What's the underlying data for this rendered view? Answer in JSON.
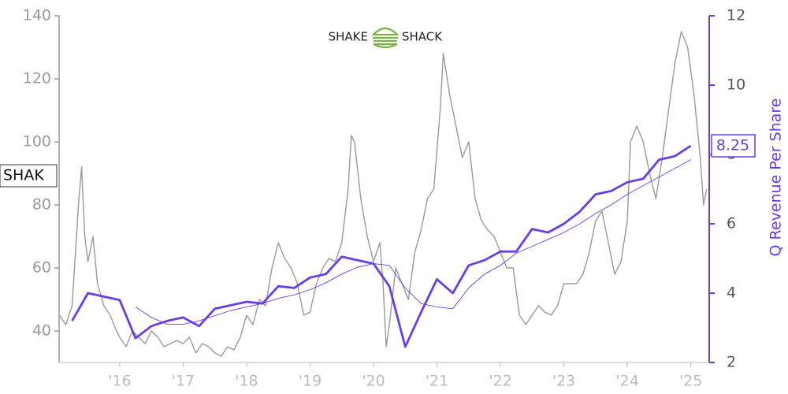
{
  "chart_data": {
    "type": "line",
    "logo": {
      "left": "SHAKE",
      "right": "SHACK"
    },
    "y2label": "Q Revenue Per Share",
    "xlim": [
      2015.045,
      2025.29
    ],
    "xticks": [
      {
        "value": 2016,
        "label": "'16"
      },
      {
        "value": 2017,
        "label": "'17"
      },
      {
        "value": 2018,
        "label": "'18"
      },
      {
        "value": 2019,
        "label": "'19"
      },
      {
        "value": 2020,
        "label": "'20"
      },
      {
        "value": 2021,
        "label": "'21"
      },
      {
        "value": 2022,
        "label": "'22"
      },
      {
        "value": 2023,
        "label": "'23"
      },
      {
        "value": 2024,
        "label": "'24"
      },
      {
        "value": 2025,
        "label": "'25"
      }
    ],
    "ylim": [
      30,
      140
    ],
    "yticks": [
      40,
      60,
      80,
      100,
      120,
      140
    ],
    "y2lim": [
      2,
      12
    ],
    "y2ticks": [
      2,
      4,
      6,
      8,
      10,
      12
    ],
    "series": [
      {
        "name": "SHAK",
        "color": "#999999",
        "axis": "y",
        "x": [
          2015.05,
          2015.15,
          2015.25,
          2015.35,
          2015.4,
          2015.45,
          2015.5,
          2015.58,
          2015.65,
          2015.75,
          2015.85,
          2015.95,
          2016.0,
          2016.1,
          2016.2,
          2016.3,
          2016.4,
          2016.5,
          2016.6,
          2016.7,
          2016.8,
          2016.9,
          2017.0,
          2017.1,
          2017.2,
          2017.3,
          2017.4,
          2017.5,
          2017.6,
          2017.7,
          2017.8,
          2017.9,
          2018.0,
          2018.1,
          2018.2,
          2018.3,
          2018.4,
          2018.5,
          2018.6,
          2018.7,
          2018.8,
          2018.9,
          2019.0,
          2019.1,
          2019.2,
          2019.3,
          2019.4,
          2019.5,
          2019.6,
          2019.65,
          2019.7,
          2019.8,
          2019.9,
          2020.0,
          2020.1,
          2020.15,
          2020.2,
          2020.25,
          2020.35,
          2020.45,
          2020.55,
          2020.65,
          2020.75,
          2020.85,
          2020.95,
          2021.05,
          2021.1,
          2021.2,
          2021.3,
          2021.4,
          2021.5,
          2021.6,
          2021.7,
          2021.8,
          2021.9,
          2022.0,
          2022.1,
          2022.2,
          2022.3,
          2022.4,
          2022.5,
          2022.6,
          2022.7,
          2022.8,
          2022.9,
          2023.0,
          2023.1,
          2023.2,
          2023.3,
          2023.4,
          2023.5,
          2023.6,
          2023.7,
          2023.8,
          2023.9,
          2024.0,
          2024.05,
          2024.15,
          2024.25,
          2024.35,
          2024.45,
          2024.55,
          2024.65,
          2024.75,
          2024.85,
          2024.95,
          2025.05,
          2025.15,
          2025.2,
          2025.25
        ],
        "values": [
          45,
          42,
          48,
          80,
          92,
          70,
          62,
          70,
          55,
          48,
          45,
          40,
          38,
          35,
          40,
          38,
          36,
          40,
          38,
          35,
          36,
          37,
          36,
          38,
          33,
          36,
          35,
          33,
          32,
          35,
          34,
          38,
          45,
          42,
          50,
          48,
          60,
          68,
          63,
          60,
          55,
          45,
          46,
          55,
          60,
          63,
          62,
          68,
          85,
          102,
          100,
          82,
          70,
          62,
          68,
          55,
          35,
          42,
          60,
          55,
          50,
          65,
          72,
          82,
          85,
          110,
          128,
          115,
          105,
          95,
          100,
          82,
          75,
          72,
          70,
          65,
          60,
          60,
          45,
          42,
          45,
          48,
          46,
          45,
          48,
          55,
          55,
          55,
          58,
          65,
          75,
          78,
          68,
          58,
          62,
          75,
          100,
          105,
          100,
          90,
          82,
          95,
          110,
          125,
          135,
          130,
          115,
          95,
          80,
          85
        ]
      },
      {
        "color": "#6a3ce8",
        "axis": "y2",
        "x": [
          2015.25,
          2015.5,
          2015.75,
          2016.0,
          2016.25,
          2016.5,
          2016.75,
          2017.0,
          2017.25,
          2017.5,
          2017.75,
          2018.0,
          2018.25,
          2018.5,
          2018.75,
          2019.0,
          2019.25,
          2019.5,
          2019.75,
          2020.0,
          2020.25,
          2020.5,
          2020.75,
          2021.0,
          2021.25,
          2021.5,
          2021.75,
          2022.0,
          2022.25,
          2022.5,
          2022.75,
          2023.0,
          2023.25,
          2023.5,
          2023.75,
          2024.0,
          2024.25,
          2024.5,
          2024.75,
          2025.0
        ],
        "values": [
          3.2,
          4.0,
          3.9,
          3.8,
          2.7,
          3.05,
          3.2,
          3.3,
          3.05,
          3.55,
          3.65,
          3.75,
          3.7,
          4.2,
          4.15,
          4.45,
          4.55,
          5.05,
          4.95,
          4.85,
          4.2,
          2.45,
          3.45,
          4.4,
          4.0,
          4.8,
          4.95,
          5.2,
          5.2,
          5.85,
          5.75,
          6.0,
          6.35,
          6.85,
          6.95,
          7.2,
          7.3,
          7.85,
          7.95,
          8.25
        ],
        "value_labels": [
          null,
          null,
          null,
          null,
          null,
          null,
          null,
          null,
          null,
          null,
          null,
          null,
          null,
          null,
          null,
          null,
          null,
          null,
          null,
          null,
          null,
          null,
          null,
          null,
          null,
          null,
          null,
          null,
          null,
          null,
          null,
          null,
          null,
          null,
          null,
          null,
          null,
          null,
          null,
          "8.25"
        ]
      },
      {
        "color": "#6a3ce8",
        "axis": "y2",
        "x": [
          2016.25,
          2016.5,
          2016.75,
          2017.0,
          2017.25,
          2017.5,
          2017.75,
          2018.0,
          2018.25,
          2018.5,
          2018.75,
          2019.0,
          2019.25,
          2019.5,
          2019.75,
          2020.0,
          2020.25,
          2020.5,
          2020.75,
          2021.0,
          2021.25,
          2021.5,
          2021.75,
          2022.0,
          2022.25,
          2022.5,
          2022.75,
          2023.0,
          2023.25,
          2023.5,
          2023.75,
          2024.0,
          2024.25,
          2024.5,
          2024.75,
          2025.0
        ],
        "values": [
          3.6,
          3.3,
          3.1,
          3.1,
          3.2,
          3.35,
          3.5,
          3.6,
          3.7,
          3.85,
          3.95,
          4.1,
          4.3,
          4.55,
          4.75,
          4.85,
          4.8,
          4.15,
          3.7,
          3.6,
          3.55,
          4.15,
          4.55,
          4.8,
          5.15,
          5.35,
          5.55,
          5.75,
          6.0,
          6.3,
          6.55,
          6.85,
          7.1,
          7.35,
          7.6,
          7.85
        ]
      }
    ]
  }
}
